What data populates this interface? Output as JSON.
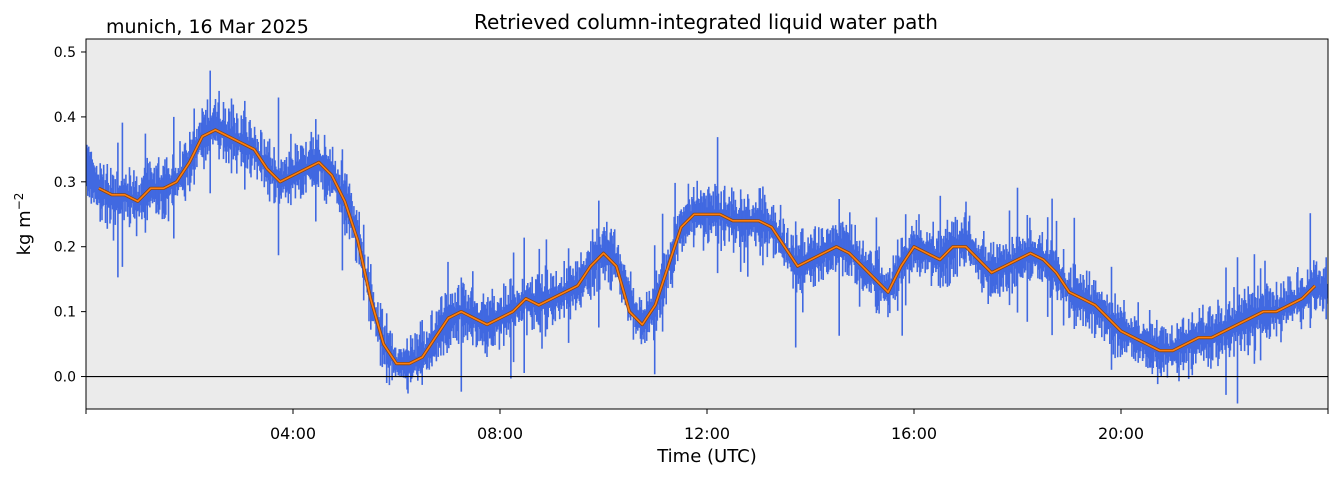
{
  "chart_data": {
    "type": "line",
    "title": "Retrieved column-integrated liquid water path",
    "subtitle": "munich, 16 Mar 2025",
    "xlabel": "Time (UTC)",
    "ylabel_base": "kg m",
    "ylabel_exp": "−2",
    "xlim": [
      0,
      24
    ],
    "ylim": [
      -0.05,
      0.52
    ],
    "x_ticks": [
      {
        "x": 4,
        "label": "04:00"
      },
      {
        "x": 8,
        "label": "08:00"
      },
      {
        "x": 12,
        "label": "12:00"
      },
      {
        "x": 16,
        "label": "16:00"
      },
      {
        "x": 20,
        "label": "20:00"
      }
    ],
    "x_minor_ticks": [
      0,
      4,
      8,
      12,
      16,
      20,
      24
    ],
    "y_ticks": [
      {
        "y": 0.0,
        "label": "0.0"
      },
      {
        "y": 0.1,
        "label": "0.1"
      },
      {
        "y": 0.2,
        "label": "0.2"
      },
      {
        "y": 0.3,
        "label": "0.3"
      },
      {
        "y": 0.4,
        "label": "0.4"
      },
      {
        "y": 0.5,
        "label": "0.5"
      }
    ],
    "zero_line": 0.0,
    "background": "#ebebeb",
    "series": [
      {
        "role": "retrieval",
        "style": "scatter-dense",
        "color": "#4169e1",
        "x": [
          0.0,
          0.25,
          0.5,
          0.75,
          1.0,
          1.25,
          1.5,
          1.75,
          2.0,
          2.25,
          2.5,
          2.75,
          3.0,
          3.25,
          3.5,
          3.75,
          4.0,
          4.25,
          4.5,
          4.75,
          5.0,
          5.25,
          5.5,
          5.75,
          6.0,
          6.25,
          6.5,
          6.75,
          7.0,
          7.25,
          7.5,
          7.75,
          8.0,
          8.25,
          8.5,
          8.75,
          9.0,
          9.25,
          9.5,
          9.75,
          10.0,
          10.25,
          10.5,
          10.75,
          11.0,
          11.25,
          11.5,
          11.75,
          12.0,
          12.25,
          12.5,
          12.75,
          13.0,
          13.25,
          13.5,
          13.75,
          14.0,
          14.25,
          14.5,
          14.75,
          15.0,
          15.25,
          15.5,
          15.75,
          16.0,
          16.25,
          16.5,
          16.75,
          17.0,
          17.25,
          17.5,
          17.75,
          18.0,
          18.25,
          18.5,
          18.75,
          19.0,
          19.25,
          19.5,
          19.75,
          20.0,
          20.25,
          20.5,
          20.75,
          21.0,
          21.25,
          21.5,
          21.75,
          22.0,
          22.25,
          22.5,
          22.75,
          23.0,
          23.25,
          23.5,
          23.75,
          24.0
        ],
        "y": [
          0.32,
          0.29,
          0.27,
          0.28,
          0.27,
          0.29,
          0.29,
          0.3,
          0.33,
          0.37,
          0.39,
          0.37,
          0.36,
          0.35,
          0.32,
          0.3,
          0.31,
          0.32,
          0.33,
          0.31,
          0.27,
          0.22,
          0.12,
          0.05,
          0.02,
          0.02,
          0.03,
          0.06,
          0.09,
          0.1,
          0.09,
          0.08,
          0.09,
          0.1,
          0.12,
          0.11,
          0.12,
          0.13,
          0.14,
          0.17,
          0.19,
          0.18,
          0.12,
          0.08,
          0.11,
          0.17,
          0.23,
          0.25,
          0.25,
          0.25,
          0.24,
          0.24,
          0.24,
          0.23,
          0.2,
          0.17,
          0.18,
          0.19,
          0.2,
          0.2,
          0.17,
          0.15,
          0.13,
          0.17,
          0.2,
          0.19,
          0.18,
          0.2,
          0.21,
          0.18,
          0.16,
          0.17,
          0.18,
          0.19,
          0.18,
          0.16,
          0.13,
          0.12,
          0.11,
          0.09,
          0.07,
          0.06,
          0.05,
          0.04,
          0.04,
          0.05,
          0.06,
          0.06,
          0.07,
          0.08,
          0.09,
          0.1,
          0.1,
          0.11,
          0.12,
          0.14,
          0.13
        ]
      },
      {
        "role": "smoothed",
        "style": "line",
        "color": "#ff7f0e",
        "x": [
          0.25,
          0.5,
          0.75,
          1.0,
          1.25,
          1.5,
          1.75,
          2.0,
          2.25,
          2.5,
          2.75,
          3.0,
          3.25,
          3.5,
          3.75,
          4.0,
          4.25,
          4.5,
          4.75,
          5.0,
          5.25,
          5.5,
          5.75,
          6.0,
          6.25,
          6.5,
          6.75,
          7.0,
          7.25,
          7.5,
          7.75,
          8.0,
          8.25,
          8.5,
          8.75,
          9.0,
          9.25,
          9.5,
          9.75,
          10.0,
          10.25,
          10.5,
          10.75,
          11.0,
          11.25,
          11.5,
          11.75,
          12.0,
          12.25,
          12.5,
          12.75,
          13.0,
          13.25,
          13.5,
          13.75,
          14.0,
          14.25,
          14.5,
          14.75,
          15.0,
          15.25,
          15.5,
          15.75,
          16.0,
          16.25,
          16.5,
          16.75,
          17.0,
          17.25,
          17.5,
          17.75,
          18.0,
          18.25,
          18.5,
          18.75,
          19.0,
          19.25,
          19.5,
          19.75,
          20.0,
          20.25,
          20.5,
          20.75,
          21.0,
          21.25,
          21.5,
          21.75,
          22.0,
          22.25,
          22.5,
          22.75,
          23.0,
          23.25,
          23.5,
          23.75
        ],
        "y": [
          0.29,
          0.28,
          0.28,
          0.27,
          0.29,
          0.29,
          0.3,
          0.33,
          0.37,
          0.38,
          0.37,
          0.36,
          0.35,
          0.32,
          0.3,
          0.31,
          0.32,
          0.33,
          0.31,
          0.27,
          0.21,
          0.12,
          0.05,
          0.02,
          0.02,
          0.03,
          0.06,
          0.09,
          0.1,
          0.09,
          0.08,
          0.09,
          0.1,
          0.12,
          0.11,
          0.12,
          0.13,
          0.14,
          0.17,
          0.19,
          0.17,
          0.1,
          0.08,
          0.11,
          0.17,
          0.23,
          0.25,
          0.25,
          0.25,
          0.24,
          0.24,
          0.24,
          0.23,
          0.2,
          0.17,
          0.18,
          0.19,
          0.2,
          0.19,
          0.17,
          0.15,
          0.13,
          0.17,
          0.2,
          0.19,
          0.18,
          0.2,
          0.2,
          0.18,
          0.16,
          0.17,
          0.18,
          0.19,
          0.18,
          0.16,
          0.13,
          0.12,
          0.11,
          0.09,
          0.07,
          0.06,
          0.05,
          0.04,
          0.04,
          0.05,
          0.06,
          0.06,
          0.07,
          0.08,
          0.09,
          0.1,
          0.1,
          0.11,
          0.12,
          0.14
        ]
      }
    ],
    "grid": false,
    "legend": "none"
  }
}
